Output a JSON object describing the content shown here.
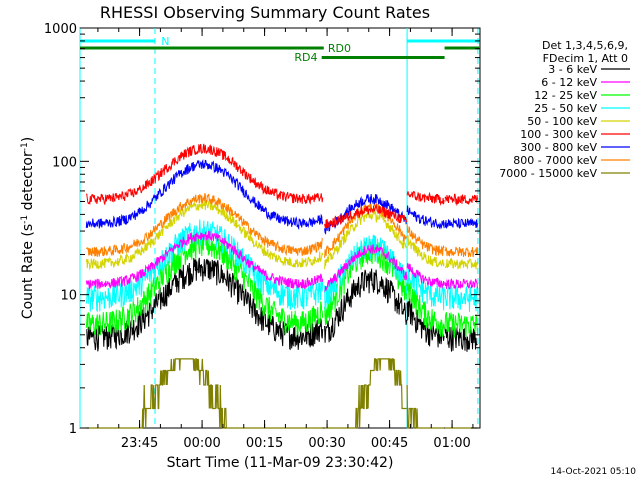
{
  "chart_data": {
    "type": "line",
    "title": "RHESSI Observing Summary Count Rates",
    "xlabel": "Start Time (11-Mar-09 23:30:42)",
    "ylabel_parts": [
      "Count Rate (s",
      "-1",
      " detector",
      "-1",
      ")"
    ],
    "yscale": "log",
    "ylim": [
      1,
      1000
    ],
    "y_ticks": [
      1,
      10,
      100,
      1000
    ],
    "y_tick_labels": [
      "1",
      "10",
      "100",
      "1000"
    ],
    "xlim_minutes": [
      0,
      96
    ],
    "x_tick_labels": [
      "23:45",
      "00:00",
      "00:15",
      "00:30",
      "00:45",
      "01:00"
    ],
    "x_tick_minutes": [
      14.3,
      29.3,
      44.3,
      59.3,
      74.3,
      89.3
    ],
    "grid": false,
    "legend_position": "right",
    "legend_header": [
      "Det 1,3,4,5,6,9,",
      "FDecim 1, Att 0"
    ],
    "series": [
      {
        "name": "3 - 6 keV",
        "color": "#000000",
        "base": 4.8,
        "peak1": 16,
        "peak2": 16
      },
      {
        "name": "6 - 12 keV",
        "color": "#ff00ff",
        "base": 12,
        "peak1": 28,
        "peak2": 27
      },
      {
        "name": "12 - 25 keV",
        "color": "#00ff00",
        "base": 6,
        "peak1": 24,
        "peak2": 26
      },
      {
        "name": "25 - 50 keV",
        "color": "#00ffff",
        "base": 9.5,
        "peak1": 30,
        "peak2": 28
      },
      {
        "name": "50 - 100 keV",
        "color": "#d4d400",
        "base": 17,
        "peak1": 47,
        "peak2": 48
      },
      {
        "name": "100 - 300 keV",
        "color": "#ff0000",
        "base": 52,
        "peak1": 125,
        "peak2": 70
      },
      {
        "name": "300 - 800 keV",
        "color": "#0000ff",
        "base": 34,
        "peak1": 95,
        "peak2": 64
      },
      {
        "name": "800 - 7000 keV",
        "color": "#ff8000",
        "base": 21,
        "peak1": 53,
        "peak2": 55
      },
      {
        "name": "7000 - 15000 keV",
        "color": "#808000",
        "base": 1.5,
        "peak1": 3.2,
        "peak2": 3.2
      }
    ],
    "annotations": {
      "night_label": "N",
      "rd0_label": "RD0",
      "rd4_label": "RD4",
      "night_color": "#00ffff",
      "decim_color": "#008000"
    },
    "timestamp": "14-Oct-2021 05:10"
  }
}
